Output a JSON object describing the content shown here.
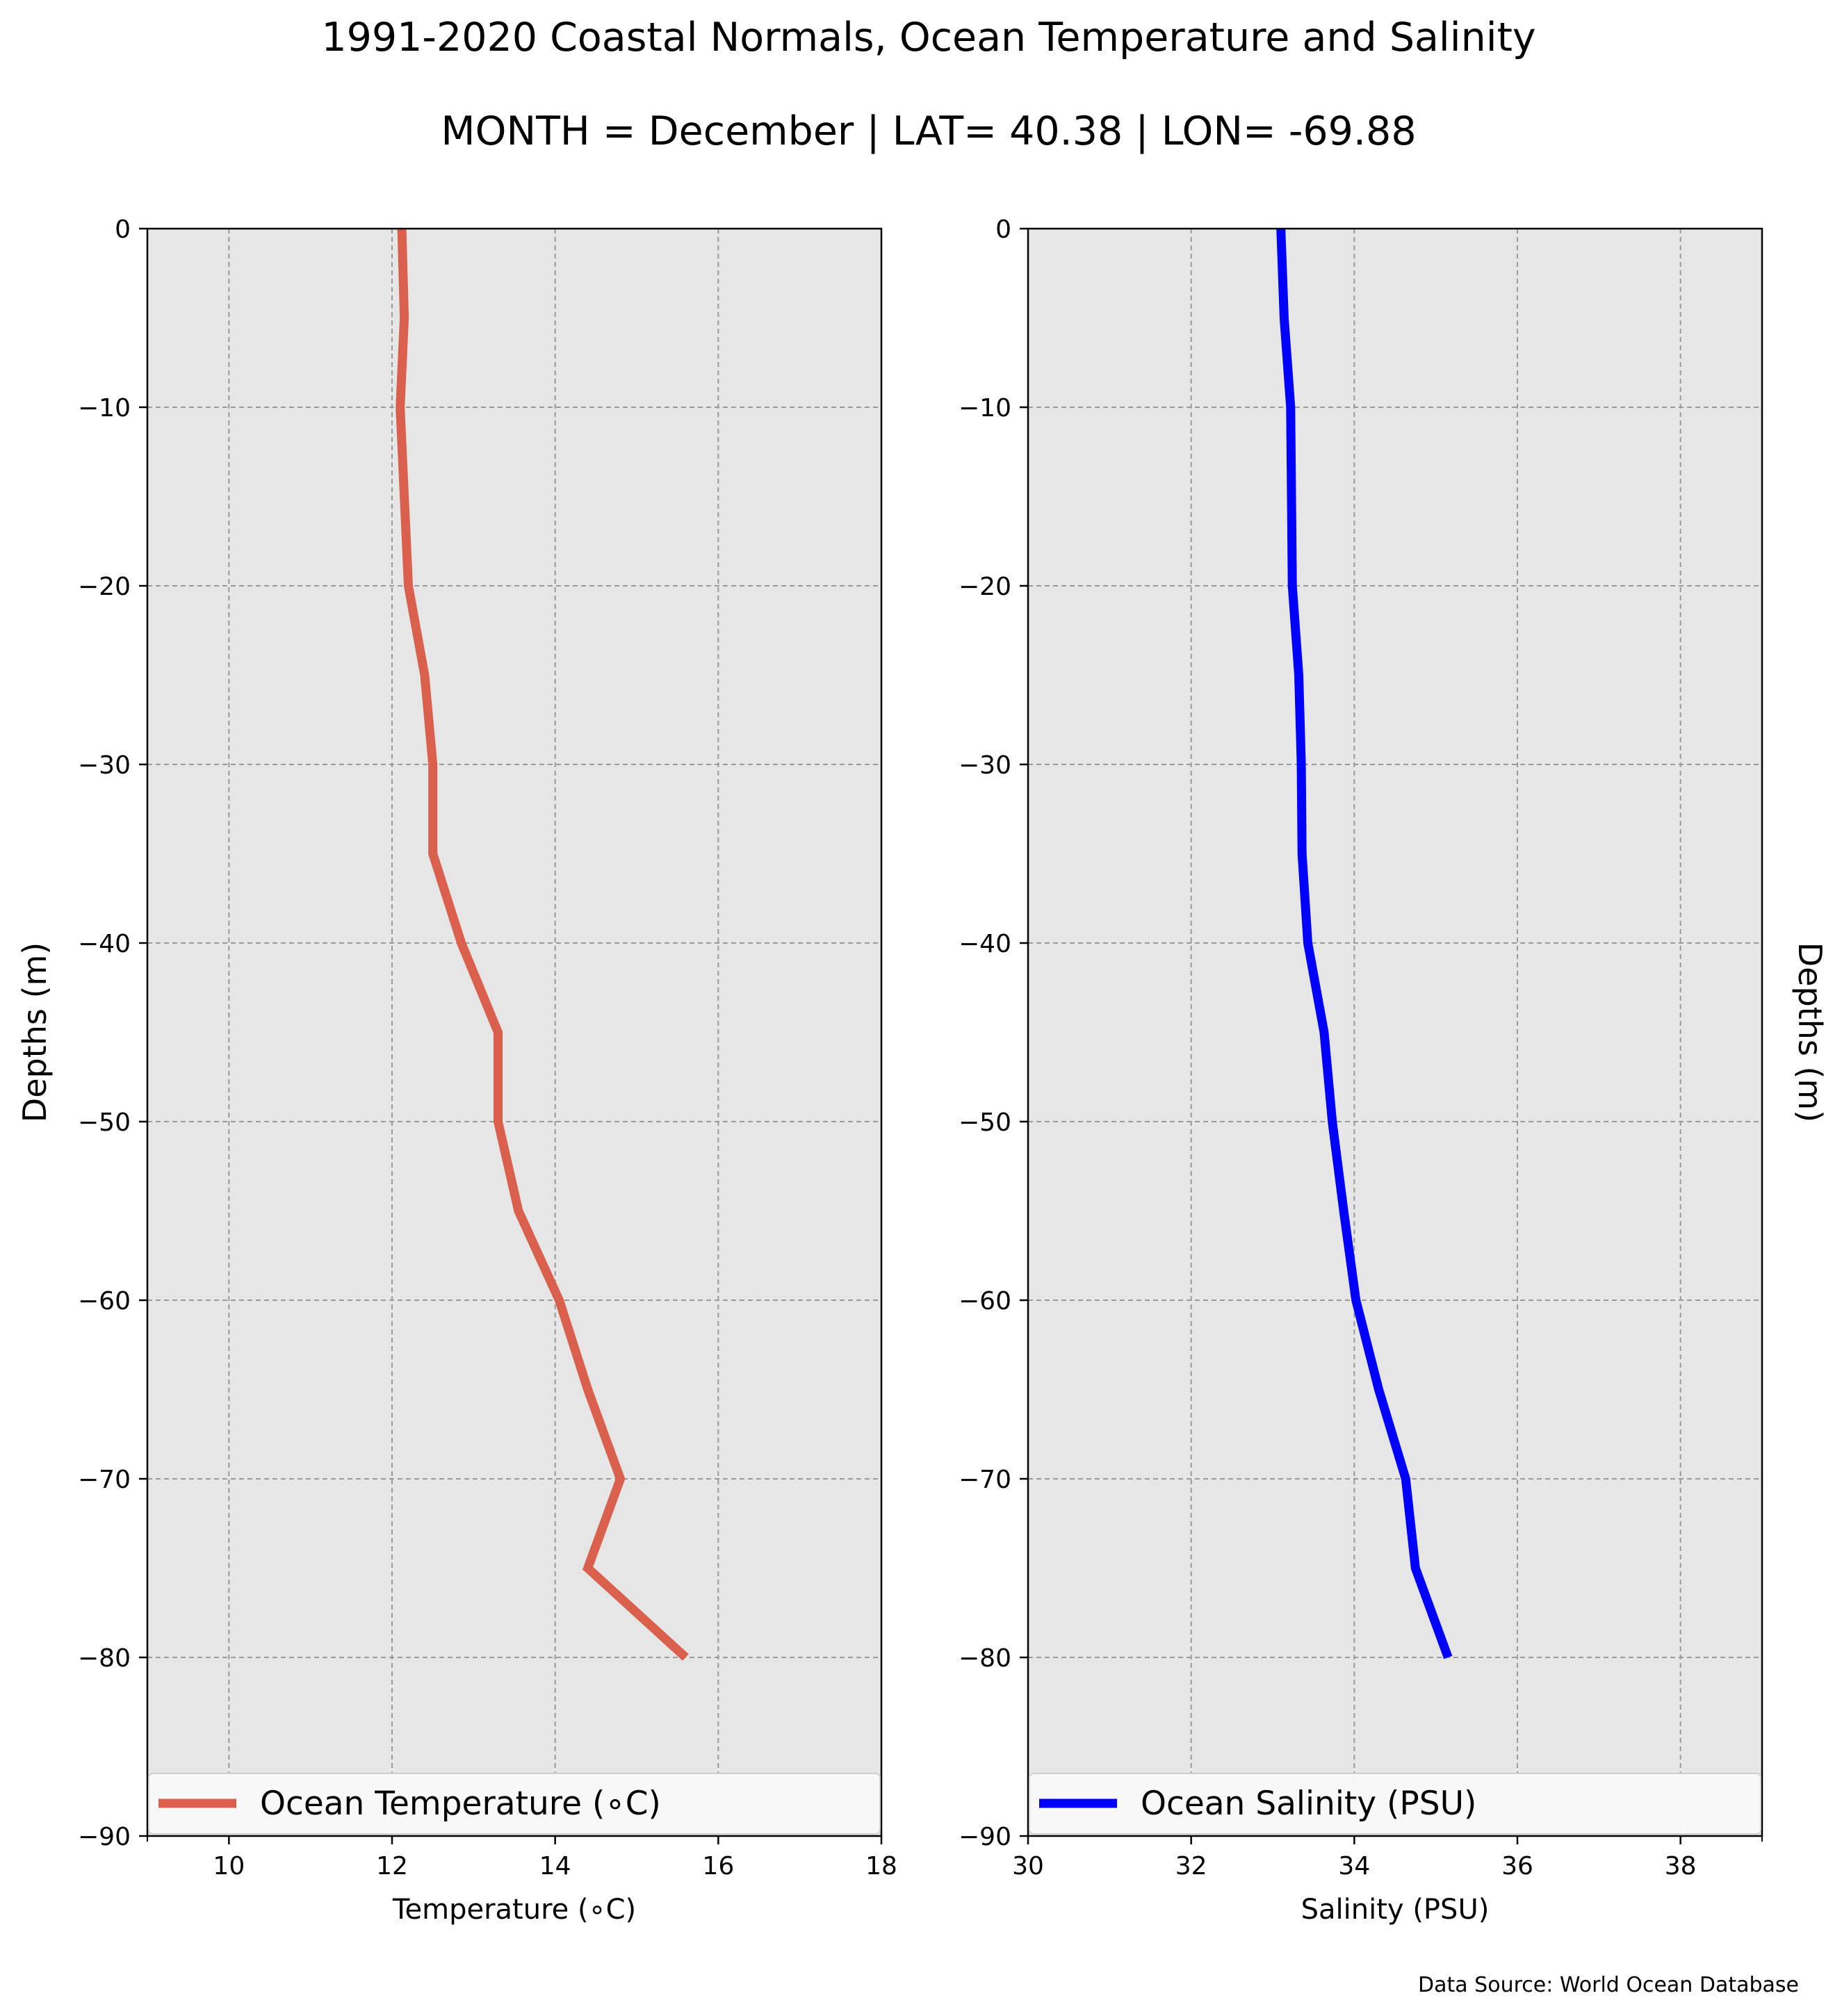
{
  "figure": {
    "title": "1991-2020 Coastal Normals, Ocean Temperature and Salinity",
    "subtitle": "MONTH = December | LAT= 40.38 | LON= -69.88",
    "source": "Data Source: World Ocean Database"
  },
  "chart_data": [
    {
      "type": "line",
      "xlabel": "Temperature (∘C)",
      "ylabel": "Depths (m)",
      "xlim": [
        9,
        18
      ],
      "ylim": [
        -90,
        0
      ],
      "xticks": [
        10,
        12,
        14,
        16,
        18
      ],
      "yticks": [
        0,
        -10,
        -20,
        -30,
        -40,
        -50,
        -60,
        -70,
        -80,
        -90
      ],
      "grid": true,
      "background": "#e6e6e6",
      "legend": "bottom",
      "series": [
        {
          "name": "Ocean Temperature (∘C)",
          "color": "#d9604c",
          "x": [
            12.12,
            12.15,
            12.1,
            12.2,
            12.4,
            12.5,
            12.5,
            12.85,
            13.3,
            13.3,
            13.55,
            14.05,
            14.4,
            14.8,
            14.4,
            15.6
          ],
          "y": [
            0,
            -5,
            -10,
            -20,
            -25,
            -30,
            -35,
            -40,
            -45,
            -50,
            -55,
            -60,
            -65,
            -70,
            -75,
            -80
          ]
        }
      ]
    },
    {
      "type": "line",
      "xlabel": "Salinity (PSU)",
      "ylabel": "Depths (m)",
      "xlim": [
        30,
        39
      ],
      "ylim": [
        -90,
        0
      ],
      "xticks": [
        30,
        32,
        34,
        36,
        38
      ],
      "yticks": [
        0,
        -10,
        -20,
        -30,
        -40,
        -50,
        -60,
        -70,
        -80,
        -90
      ],
      "grid": true,
      "background": "#e6e6e6",
      "legend": "bottom",
      "series": [
        {
          "name": "Ocean Salinity (PSU)",
          "color": "#0000ff",
          "x": [
            33.1,
            33.14,
            33.22,
            33.24,
            33.32,
            33.35,
            33.36,
            33.43,
            33.63,
            33.73,
            33.87,
            34.02,
            34.3,
            34.63,
            34.75,
            35.15
          ],
          "y": [
            0,
            -5,
            -10,
            -20,
            -25,
            -30,
            -35,
            -40,
            -45,
            -50,
            -55,
            -60,
            -65,
            -70,
            -75,
            -80
          ]
        }
      ]
    }
  ]
}
